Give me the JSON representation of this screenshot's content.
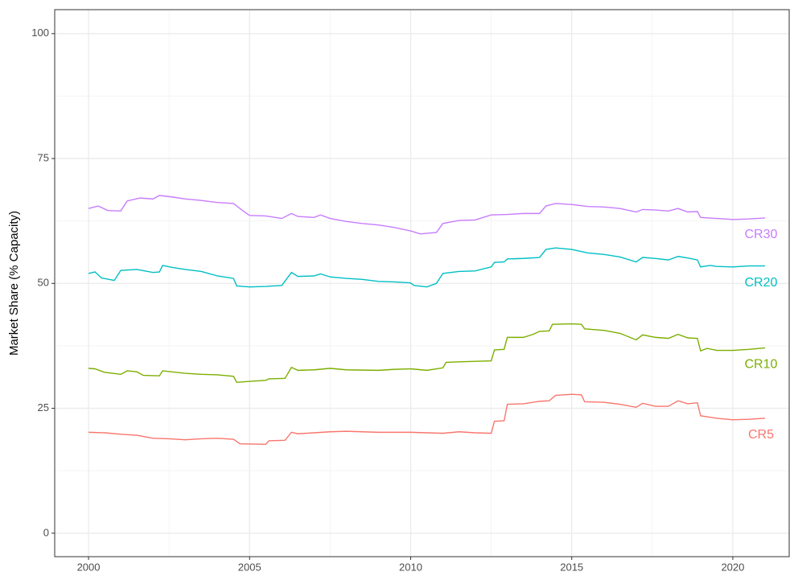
{
  "chart_data": {
    "type": "line",
    "y_label": "Market Share (% Capacity)",
    "xlim": [
      1998.95,
      2021.75
    ],
    "ylim": [
      -4.7,
      104.8
    ],
    "xticks": [
      2000,
      2005,
      2010,
      2015,
      2020
    ],
    "yticks": [
      0,
      25,
      50,
      75,
      100
    ],
    "xminor": [
      2002.5,
      2007.5,
      2012.5,
      2017.5
    ],
    "yminor": [
      12.5,
      37.5,
      62.5,
      87.5
    ],
    "grid": true,
    "series": [
      {
        "name": "CR5",
        "color": "#F8766D",
        "x": [
          2000,
          2000.5,
          2001,
          2001.5,
          2002,
          2002.5,
          2003,
          2003.5,
          2004,
          2004.5,
          2004.7,
          2005.5,
          2005.6,
          2006.1,
          2006.3,
          2006.5,
          2007,
          2007.5,
          2008,
          2009,
          2010,
          2010.5,
          2011,
          2011.5,
          2012,
          2012.5,
          2012.6,
          2012.9,
          2013,
          2013.5,
          2014,
          2014.3,
          2014.5,
          2015,
          2015.3,
          2015.4,
          2016,
          2016.5,
          2017,
          2017.2,
          2017.6,
          2018,
          2018.3,
          2018.6,
          2018.9,
          2019,
          2019.5,
          2020,
          2020.5,
          2021
        ],
        "values": [
          20.2,
          20.1,
          19.8,
          19.6,
          19.0,
          18.9,
          18.7,
          18.9,
          19.0,
          18.8,
          17.9,
          17.8,
          18.5,
          18.6,
          20.2,
          19.9,
          20.1,
          20.3,
          20.4,
          20.2,
          20.2,
          20.1,
          20.0,
          20.3,
          20.1,
          20.0,
          22.4,
          22.5,
          25.8,
          25.9,
          26.4,
          26.5,
          27.6,
          27.8,
          27.7,
          26.3,
          26.2,
          25.8,
          25.2,
          26.0,
          25.4,
          25.4,
          26.5,
          25.9,
          26.1,
          23.5,
          23.0,
          22.7,
          22.8,
          23.0
        ]
      },
      {
        "name": "CR10",
        "color": "#7CAE00",
        "x": [
          2000,
          2000.2,
          2000.5,
          2001,
          2001.2,
          2001.5,
          2001.7,
          2002.2,
          2002.3,
          2003,
          2003.5,
          2004,
          2004.5,
          2004.6,
          2005,
          2005.5,
          2005.6,
          2006.1,
          2006.3,
          2006.5,
          2007,
          2007.5,
          2008,
          2009,
          2009.5,
          2010,
          2010.5,
          2011,
          2011.1,
          2011.5,
          2012,
          2012.5,
          2012.6,
          2012.9,
          2013,
          2013.5,
          2013.8,
          2014,
          2014.3,
          2014.4,
          2015,
          2015.3,
          2015.4,
          2016,
          2016.5,
          2017,
          2017.2,
          2017.6,
          2018,
          2018.3,
          2018.6,
          2018.9,
          2019,
          2019.2,
          2019.5,
          2020,
          2020.5,
          2021
        ],
        "values": [
          33.0,
          32.9,
          32.2,
          31.8,
          32.5,
          32.3,
          31.6,
          31.5,
          32.5,
          32.0,
          31.8,
          31.7,
          31.4,
          30.2,
          30.4,
          30.6,
          30.9,
          31.0,
          33.2,
          32.6,
          32.7,
          33.0,
          32.7,
          32.6,
          32.8,
          32.9,
          32.6,
          33.1,
          34.2,
          34.3,
          34.4,
          34.5,
          36.7,
          36.8,
          39.2,
          39.2,
          39.8,
          40.4,
          40.5,
          41.8,
          41.9,
          41.8,
          40.9,
          40.6,
          40.0,
          38.7,
          39.7,
          39.2,
          39.0,
          39.8,
          39.1,
          39.0,
          36.5,
          37.0,
          36.6,
          36.6,
          36.8,
          37.1
        ]
      },
      {
        "name": "CR20",
        "color": "#00BFC4",
        "x": [
          2000,
          2000.2,
          2000.4,
          2000.8,
          2001,
          2001.5,
          2002,
          2002.2,
          2002.3,
          2002.6,
          2003,
          2003.5,
          2004,
          2004.5,
          2004.6,
          2005,
          2005.5,
          2006,
          2006.3,
          2006.5,
          2007,
          2007.2,
          2007.5,
          2008,
          2008.5,
          2009,
          2009.5,
          2010,
          2010.1,
          2010.5,
          2010.8,
          2011,
          2011.5,
          2012,
          2012.5,
          2012.6,
          2012.9,
          2013,
          2013.5,
          2014,
          2014.2,
          2014.5,
          2015,
          2015.5,
          2016,
          2016.5,
          2017,
          2017.2,
          2017.6,
          2018,
          2018.3,
          2018.6,
          2018.9,
          2019,
          2019.3,
          2019.5,
          2020,
          2020.5,
          2021
        ],
        "values": [
          52.0,
          52.3,
          51.1,
          50.6,
          52.6,
          52.8,
          52.2,
          52.3,
          53.6,
          53.2,
          52.8,
          52.4,
          51.5,
          51.0,
          49.5,
          49.3,
          49.4,
          49.6,
          52.2,
          51.4,
          51.5,
          51.9,
          51.3,
          51.0,
          50.8,
          50.4,
          50.3,
          50.1,
          49.6,
          49.3,
          50.0,
          52.0,
          52.4,
          52.5,
          53.3,
          54.2,
          54.3,
          54.9,
          55.0,
          55.2,
          56.8,
          57.1,
          56.8,
          56.1,
          55.8,
          55.3,
          54.3,
          55.2,
          55.0,
          54.7,
          55.4,
          55.1,
          54.7,
          53.3,
          53.6,
          53.4,
          53.3,
          53.5,
          53.5
        ]
      },
      {
        "name": "CR30",
        "color": "#C77CFF",
        "x": [
          2000,
          2000.3,
          2000.6,
          2001,
          2001.2,
          2001.6,
          2002,
          2002.2,
          2002.6,
          2003,
          2003.5,
          2004,
          2004.5,
          2004.8,
          2005,
          2005.5,
          2006,
          2006.3,
          2006.5,
          2007,
          2007.2,
          2007.5,
          2008,
          2008.5,
          2009,
          2009.5,
          2010,
          2010.3,
          2010.8,
          2011,
          2011.5,
          2012,
          2012.5,
          2013,
          2013.5,
          2014,
          2014.2,
          2014.5,
          2015,
          2015.5,
          2016,
          2016.5,
          2017,
          2017.2,
          2017.6,
          2018,
          2018.3,
          2018.6,
          2018.9,
          2019,
          2019.5,
          2020,
          2020.5,
          2021
        ],
        "values": [
          65.0,
          65.5,
          64.6,
          64.5,
          66.5,
          67.1,
          66.9,
          67.6,
          67.3,
          66.9,
          66.6,
          66.2,
          66.0,
          64.5,
          63.6,
          63.5,
          63.0,
          64.0,
          63.4,
          63.2,
          63.7,
          63.0,
          62.4,
          62.0,
          61.7,
          61.2,
          60.5,
          59.9,
          60.2,
          62.0,
          62.6,
          62.7,
          63.7,
          63.8,
          64.0,
          64.0,
          65.5,
          66.0,
          65.8,
          65.4,
          65.3,
          65.0,
          64.3,
          64.8,
          64.7,
          64.5,
          65.0,
          64.3,
          64.4,
          63.2,
          63.0,
          62.8,
          62.9,
          63.1
        ]
      }
    ]
  }
}
